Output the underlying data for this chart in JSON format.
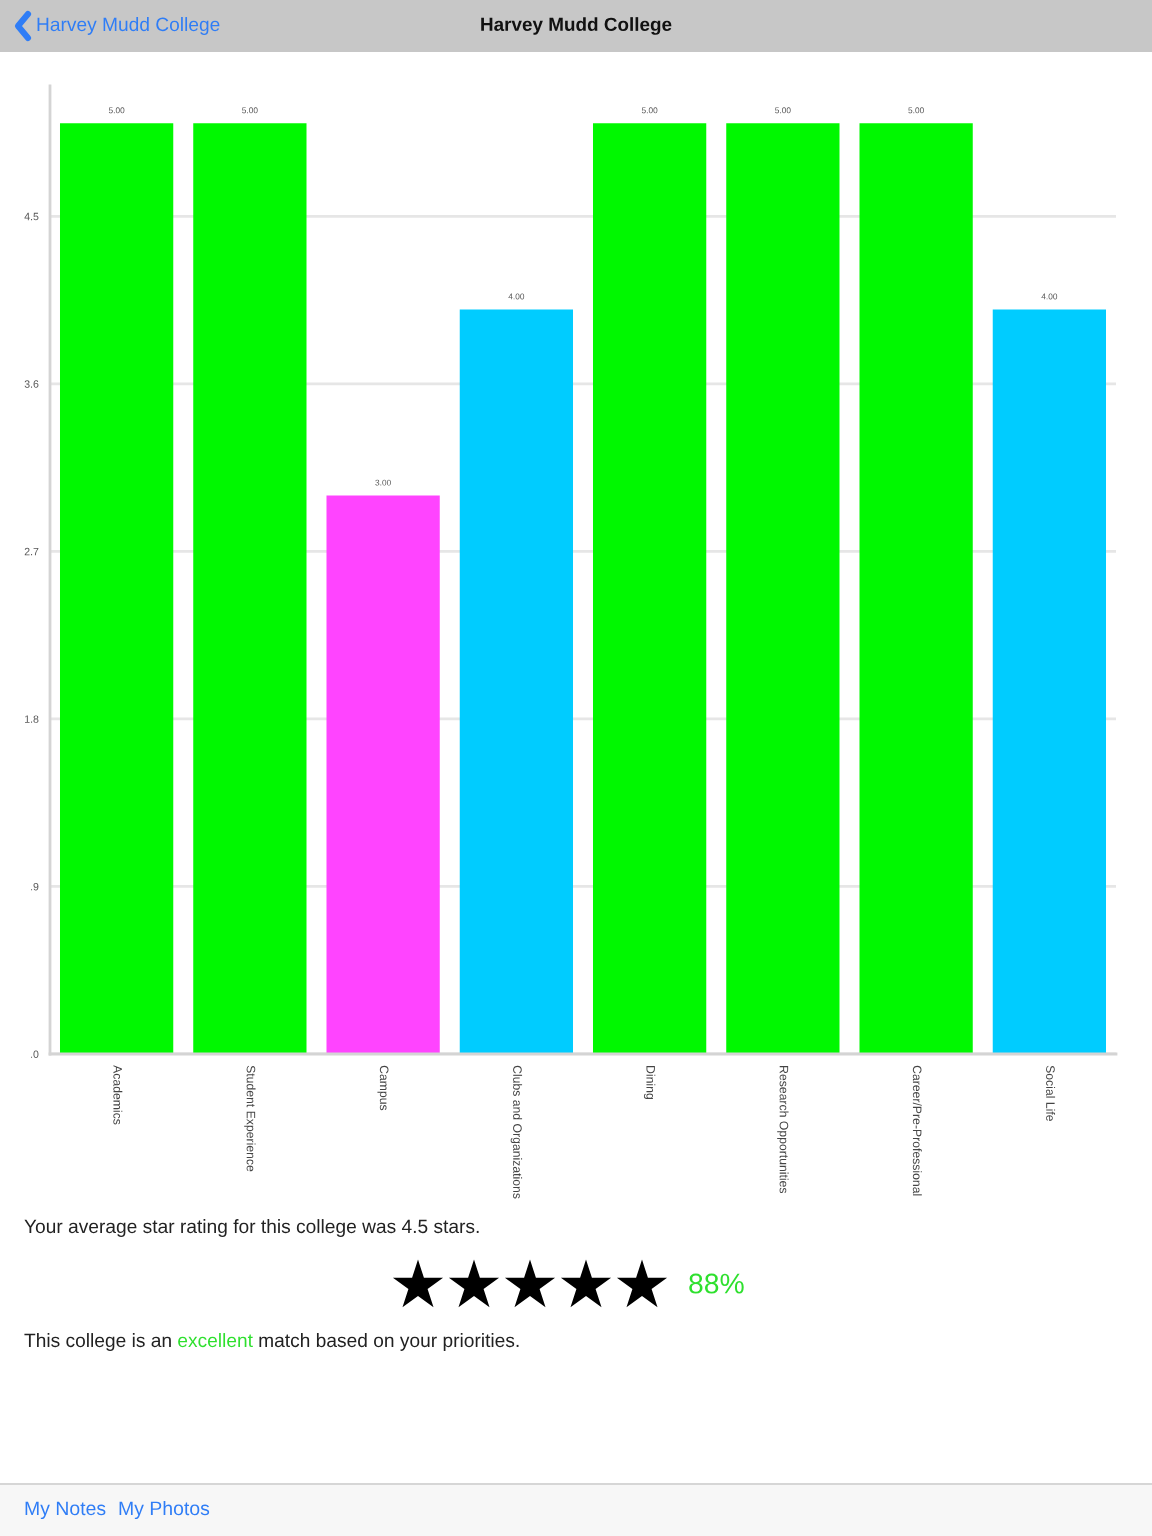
{
  "chart_data": {
    "type": "bar",
    "title": "Harvey Mudd College",
    "categories": [
      "Academics",
      "Student Experience",
      "Campus",
      "Clubs and Organizations",
      "Dining",
      "Research Opportunities",
      "Career/Pre-Professional",
      "Social Life"
    ],
    "values": [
      5,
      5,
      3,
      4,
      5,
      5,
      5,
      4
    ],
    "colors": [
      "#00f800",
      "#00f800",
      "#ff44ff",
      "#00ccff",
      "#00f800",
      "#00f800",
      "#00f800",
      "#00ccff"
    ],
    "value_labels": [
      "5.00",
      "5.00",
      "3.00",
      "4.00",
      "5.00",
      "5.00",
      "5.00",
      "4.00"
    ],
    "ylim": [
      0,
      5.2
    ],
    "yticks": [
      {
        "value": 0,
        "label": ".0"
      },
      {
        "value": 0.9,
        "label": ".9"
      },
      1.8,
      2.7,
      3.6,
      4.5
    ],
    "grid": "y",
    "annotations": [
      "Harvey Mudd College",
      "Your average star rating for this college was 4.5 stars.",
      "88%",
      "This college is an",
      "excellent",
      "match based on your priorities.",
      "My Notes",
      "My Photos"
    ]
  }
}
